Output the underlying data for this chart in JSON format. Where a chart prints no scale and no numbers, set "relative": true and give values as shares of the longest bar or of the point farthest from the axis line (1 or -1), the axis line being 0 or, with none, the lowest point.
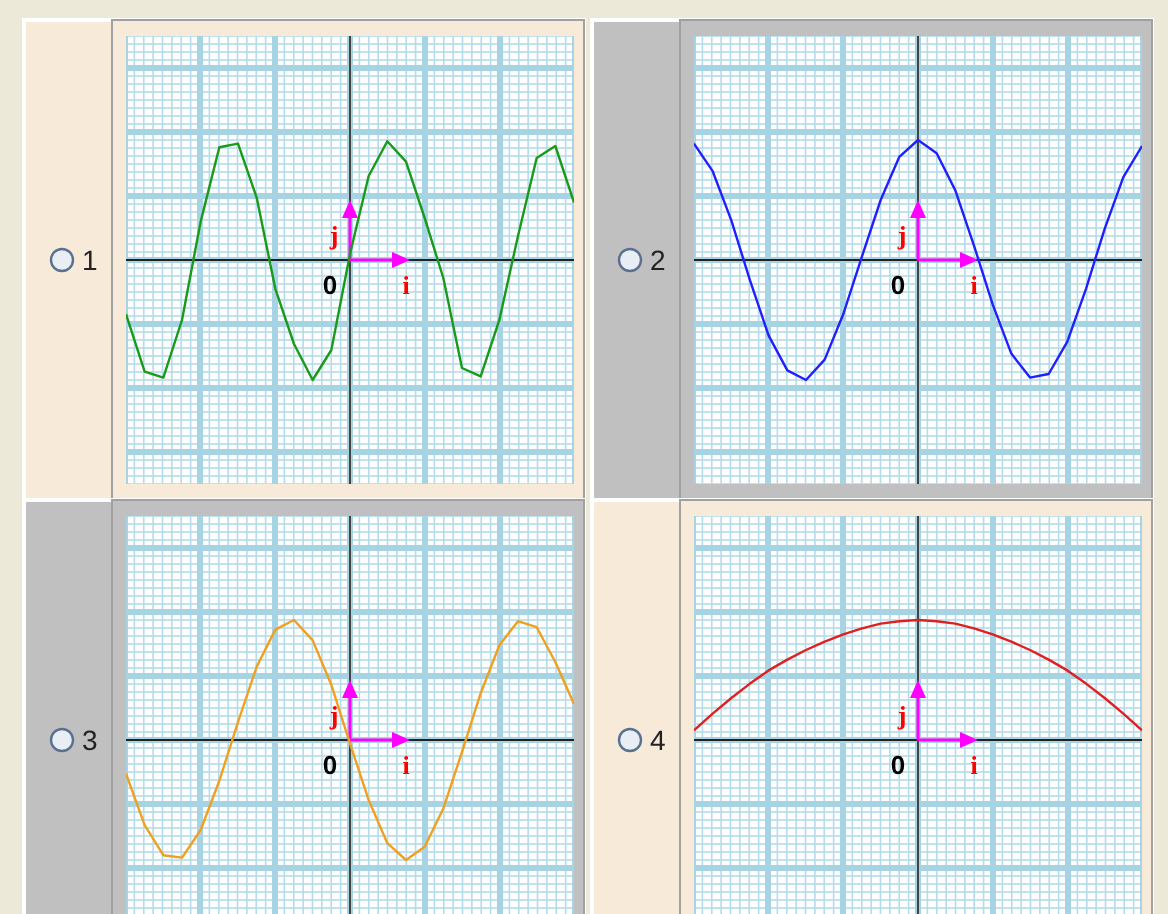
{
  "chart_data": [
    {
      "type": "line",
      "title": "1",
      "categories": [
        null,
        null,
        null,
        null,
        null,
        null,
        null,
        null,
        null,
        null,
        null,
        null,
        null,
        null,
        null,
        null,
        null,
        null,
        null,
        null,
        null,
        null,
        null,
        null,
        null
      ],
      "values": [
        -0.45,
        -0.93,
        -0.98,
        -0.5,
        0.32,
        0.94,
        0.97,
        0.52,
        -0.24,
        -0.7,
        -1,
        -0.75,
        0.05,
        0.7,
        0.99,
        0.82,
        0.35,
        -0.15,
        -0.9,
        -0.97,
        -0.5,
        0.2,
        0.85,
        0.95,
        0.48
      ],
      "color": "#1a9a1a",
      "relative": true,
      "annotations": [
        "0",
        "j",
        "i"
      ]
    },
    {
      "type": "line",
      "title": "2",
      "categories": [
        null,
        null,
        null,
        null,
        null,
        null,
        null,
        null,
        null,
        null,
        null,
        null,
        null,
        null,
        null,
        null,
        null,
        null,
        null,
        null,
        null,
        null,
        null,
        null,
        null
      ],
      "values": [
        0.97,
        0.74,
        0.33,
        -0.17,
        -0.63,
        -0.92,
        -1,
        -0.83,
        -0.45,
        0.03,
        0.5,
        0.86,
        1,
        0.89,
        0.58,
        0.12,
        -0.37,
        -0.78,
        -0.98,
        -0.95,
        -0.68,
        -0.24,
        0.26,
        0.69,
        0.95
      ],
      "color": "#2020ff",
      "relative": true,
      "annotations": [
        "0",
        "j",
        "i"
      ]
    },
    {
      "type": "line",
      "title": "3",
      "categories": [
        null,
        null,
        null,
        null,
        null,
        null,
        null,
        null,
        null,
        null,
        null,
        null,
        null,
        null,
        null,
        null,
        null,
        null,
        null,
        null,
        null,
        null,
        null,
        null,
        null
      ],
      "values": [
        -0.28,
        -0.71,
        -0.96,
        -0.98,
        -0.75,
        -0.34,
        0.15,
        0.61,
        0.92,
        1,
        0.83,
        0.46,
        -0.03,
        -0.5,
        -0.86,
        -1,
        -0.89,
        -0.57,
        -0.1,
        0.39,
        0.79,
        0.99,
        0.94,
        0.65,
        0.3
      ],
      "color": "#f0a020",
      "relative": true,
      "annotations": [
        "0",
        "j",
        "i"
      ]
    },
    {
      "type": "line",
      "title": "4",
      "categories": [
        null,
        null,
        null,
        null,
        null,
        null,
        null,
        null,
        null,
        null,
        null,
        null,
        null,
        null,
        null,
        null,
        null,
        null,
        null,
        null,
        null,
        null,
        null,
        null,
        null
      ],
      "values": [
        0.08,
        0.22,
        0.35,
        0.47,
        0.58,
        0.67,
        0.75,
        0.82,
        0.88,
        0.93,
        0.97,
        0.99,
        1,
        0.99,
        0.97,
        0.93,
        0.88,
        0.82,
        0.75,
        0.67,
        0.58,
        0.47,
        0.35,
        0.22,
        0.08
      ],
      "color": "#e02020",
      "relative": true,
      "annotations": [
        "0",
        "j",
        "i"
      ]
    }
  ]
}
